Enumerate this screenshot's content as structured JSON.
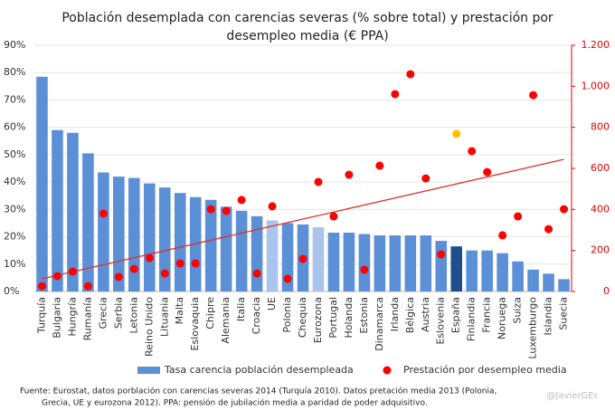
{
  "chart_data": {
    "type": "bar_scatter",
    "title": [
      "Población desemplada con carencias severas (% sobre total) y prestación por",
      "desempleo media (€ PPA)"
    ],
    "categories": [
      "Turquía",
      "Bulgaria",
      "Hungría",
      "Rumanía",
      "Grecia",
      "Serbia",
      "Letonia",
      "Reino Unido",
      "Lituania",
      "Malta",
      "Eslovaquia",
      "Chipre",
      "Alemania",
      "Italia",
      "Croacia",
      "UE",
      "Polonia",
      "Chequia",
      "Eurozona",
      "Portugal",
      "Holanda",
      "Estonia",
      "Dinamarca",
      "Irlanda",
      "Bélgica",
      "Austria",
      "Eslovenia",
      "España",
      "Finlandia",
      "Francia",
      "Noruega",
      "Suiza",
      "Luxemburgo",
      "Islandia",
      "Suecia"
    ],
    "series": [
      {
        "name": "Tasa carencia población desempleada",
        "color": "#5b8fd6",
        "bar_colors": [
          "#5b8fd6",
          "#5b8fd6",
          "#5b8fd6",
          "#5b8fd6",
          "#5b8fd6",
          "#5b8fd6",
          "#5b8fd6",
          "#5b8fd6",
          "#5b8fd6",
          "#5b8fd6",
          "#5b8fd6",
          "#5b8fd6",
          "#5b8fd6",
          "#5b8fd6",
          "#5b8fd6",
          "#a9c5ec",
          "#5b8fd6",
          "#5b8fd6",
          "#a9c5ec",
          "#5b8fd6",
          "#5b8fd6",
          "#5b8fd6",
          "#5b8fd6",
          "#5b8fd6",
          "#5b8fd6",
          "#5b8fd6",
          "#5b8fd6",
          "#1f4e8c",
          "#5b8fd6",
          "#5b8fd6",
          "#5b8fd6",
          "#5b8fd6",
          "#5b8fd6",
          "#5b8fd6",
          "#5b8fd6"
        ],
        "values": [
          78.5,
          59,
          58,
          50.5,
          43.5,
          42,
          41.5,
          39.5,
          38,
          36,
          34.5,
          33.5,
          31,
          29.5,
          27.5,
          26,
          25,
          24.5,
          23.5,
          21.5,
          21.5,
          21,
          20.5,
          20.5,
          20.5,
          20.5,
          18.5,
          16.5,
          15,
          15,
          14,
          11,
          8,
          6.5,
          4.5
        ]
      },
      {
        "name": "Prestación por desempleo media",
        "color": "#ff0000",
        "axis": "y2",
        "point_colors": [
          "#ff0000",
          "#ff0000",
          "#ff0000",
          "#ff0000",
          "#ff0000",
          "#ff0000",
          "#ff0000",
          "#ff0000",
          "#ff0000",
          "#ff0000",
          "#ff0000",
          "#ff0000",
          "#ff0000",
          "#ff0000",
          "#ff0000",
          "#ff0000",
          "#ff0000",
          "#ff0000",
          "#ff0000",
          "#ff0000",
          "#ff0000",
          "#ff0000",
          "#ff0000",
          "#ff0000",
          "#ff0000",
          "#ff0000",
          "#ff0000",
          "#ffc000",
          "#ff0000",
          "#ff0000",
          "#ff0000",
          "#ff0000",
          "#ff0000",
          "#ff0000",
          "#ff0000"
        ],
        "values": [
          26,
          75,
          97,
          26,
          380,
          71,
          110,
          163,
          88,
          137,
          137,
          401,
          393,
          446,
          88,
          415,
          62,
          159,
          534,
          366,
          569,
          106,
          613,
          962,
          1059,
          551,
          181,
          768,
          684,
          582,
          274,
          366,
          957,
          304,
          401
        ]
      }
    ],
    "trendline": {
      "color": "#e03030",
      "values": [
        62,
        644
      ]
    },
    "ylim": [
      0,
      90
    ],
    "yticks": [
      {
        "value": 0,
        "label": "0%"
      },
      {
        "value": 10,
        "label": "10%"
      },
      {
        "value": 20,
        "label": "20%"
      },
      {
        "value": 30,
        "label": "30%"
      },
      {
        "value": 40,
        "label": "40%"
      },
      {
        "value": 50,
        "label": "50%"
      },
      {
        "value": 60,
        "label": "60%"
      },
      {
        "value": 70,
        "label": "70%"
      },
      {
        "value": 80,
        "label": "80%"
      },
      {
        "value": 90,
        "label": "90%"
      }
    ],
    "y2lim": [
      0,
      1200
    ],
    "y2ticks": [
      0,
      200,
      400,
      600,
      800,
      {
        "value": 1000,
        "label": "1.000"
      },
      {
        "value": 1200,
        "label": "1.200"
      }
    ],
    "note": [
      "Fuente: Eurostat, datos porblación con carencias severas 2014 (Turquía 2010). Datos pretación media 2013 (Polonia,",
      "Grecia, UE y eurozona 2012).  PPA: pensión de jubilación media a paridad de poder adquisitivo."
    ],
    "credit": "@JavierGEc"
  }
}
